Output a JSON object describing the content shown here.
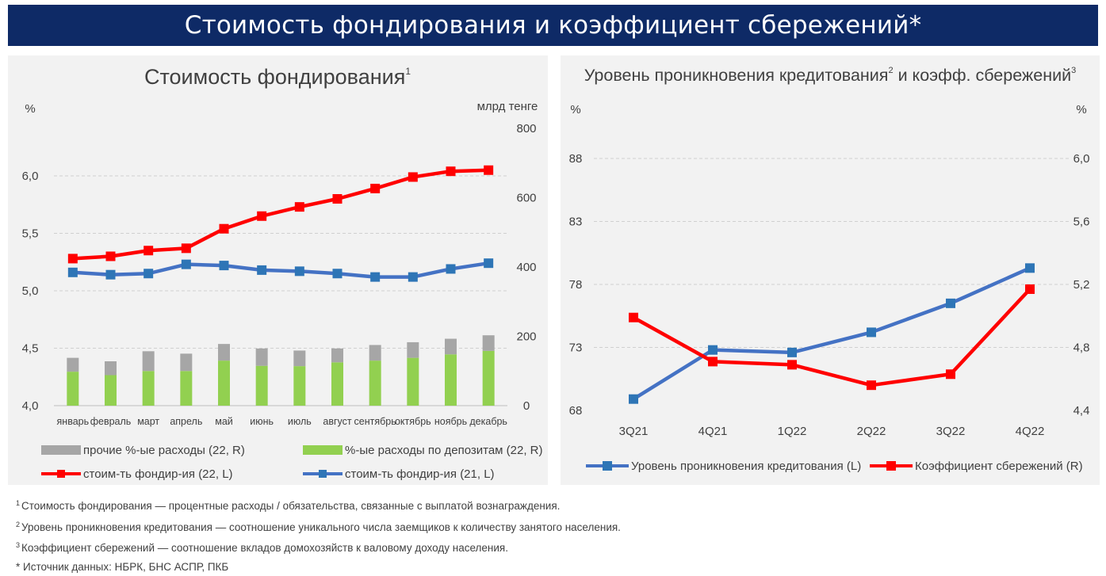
{
  "banner_title": "Стоимость фондирования и коэффициент сбережений*",
  "chart_data": [
    {
      "type": "bar",
      "title": "Стоимость фондирования",
      "title_sup": "1",
      "y_left_unit": "%",
      "y_right_unit": "млрд тенге",
      "y_left_ticks": [
        "4,0",
        "4,5",
        "5,0",
        "5,5",
        "6,0"
      ],
      "y_left_range": [
        4.0,
        6.2
      ],
      "y_right_ticks": [
        "0",
        "200",
        "400",
        "600",
        "800"
      ],
      "y_right_range": [
        0,
        800
      ],
      "categories": [
        "январь",
        "февраль",
        "март",
        "апрель",
        "май",
        "июнь",
        "июль",
        "август",
        "сентябрь",
        "октябрь",
        "ноябрь",
        "декабрь"
      ],
      "stacked_bars": [
        {
          "name": "%-ые расходы по депозитам (22, R)",
          "axis": "right",
          "color": "#92d050",
          "values": [
            98,
            88,
            100,
            100,
            130,
            115,
            114,
            125,
            130,
            138,
            148,
            158
          ]
        },
        {
          "name": "прочие %-ые расходы (22, R)",
          "axis": "right",
          "color": "#a6a6a6",
          "values": [
            40,
            40,
            57,
            50,
            48,
            50,
            45,
            40,
            45,
            45,
            45,
            45
          ]
        }
      ],
      "lines": [
        {
          "name": "стоим-ть фондир-ия (22, L)",
          "axis": "left",
          "color": "#ff0000",
          "marker": "#ff0000",
          "values": [
            5.28,
            5.3,
            5.35,
            5.37,
            5.54,
            5.65,
            5.73,
            5.8,
            5.89,
            5.99,
            6.04,
            6.05
          ]
        },
        {
          "name": "стоим-ть фондир-ия (21, L)",
          "axis": "left",
          "color": "#4472c4",
          "marker": "#2e75b6",
          "values": [
            5.16,
            5.14,
            5.15,
            5.23,
            5.22,
            5.18,
            5.17,
            5.15,
            5.12,
            5.12,
            5.19,
            5.24
          ]
        }
      ],
      "legend": [
        {
          "label": "прочие %-ые расходы (22, R)",
          "kind": "bar",
          "color": "#a6a6a6"
        },
        {
          "label": "%-ые расходы по депозитам (22, R)",
          "kind": "bar",
          "color": "#92d050"
        },
        {
          "label": "стоим-ть фондир-ия (22, L)",
          "kind": "line",
          "color": "#ff0000"
        },
        {
          "label": "стоим-ть фондир-ия (21, L)",
          "kind": "line",
          "color": "#4472c4"
        }
      ]
    },
    {
      "type": "line",
      "title": "Уровень проникновения кредитования",
      "title_sup1": "2",
      "title_mid": " и коэфф. сбережений",
      "title_sup2": "3",
      "y_left_unit": "%",
      "y_right_unit": "%",
      "y_left_ticks": [
        "68",
        "73",
        "78",
        "83",
        "88"
      ],
      "y_left_range": [
        68,
        88
      ],
      "y_right_ticks": [
        "4,4",
        "4,8",
        "5,2",
        "5,6",
        "6,0"
      ],
      "y_right_range": [
        4.4,
        6.0
      ],
      "categories": [
        "3Q21",
        "4Q21",
        "1Q22",
        "2Q22",
        "3Q22",
        "4Q22"
      ],
      "series": [
        {
          "name": "Уровень проникновения кредитования (L)",
          "axis": "left",
          "color": "#4472c4",
          "marker": "#2e75b6",
          "values": [
            68.9,
            72.8,
            72.6,
            74.2,
            76.5,
            79.3
          ]
        },
        {
          "name": "Коэффициент сбережений (R)",
          "axis": "right",
          "color": "#ff0000",
          "marker": "#ff0000",
          "values": [
            4.99,
            4.71,
            4.69,
            4.56,
            4.63,
            5.17
          ]
        }
      ],
      "legend": [
        {
          "label": "Уровень проникновения кредитования (L)",
          "color": "#4472c4"
        },
        {
          "label": "Коэффициент сбережений (R)",
          "color": "#ff0000"
        }
      ]
    }
  ],
  "footnotes": [
    {
      "sup": "1",
      "text": "Стоимость фондирования — процентные расходы / обязательства, связанные с выплатой вознаграждения."
    },
    {
      "sup": "2",
      "text": "Уровень проникновения кредитования — соотношение уникального числа заемщиков к количеству занятого населения."
    },
    {
      "sup": "3",
      "text": "Коэффициент сбережений — соотношение вкладов домохозяйств к валовому доходу населения."
    },
    {
      "sup": "",
      "text": "* Источник данных: НБРК, БНС АСПР, ПКБ"
    }
  ]
}
